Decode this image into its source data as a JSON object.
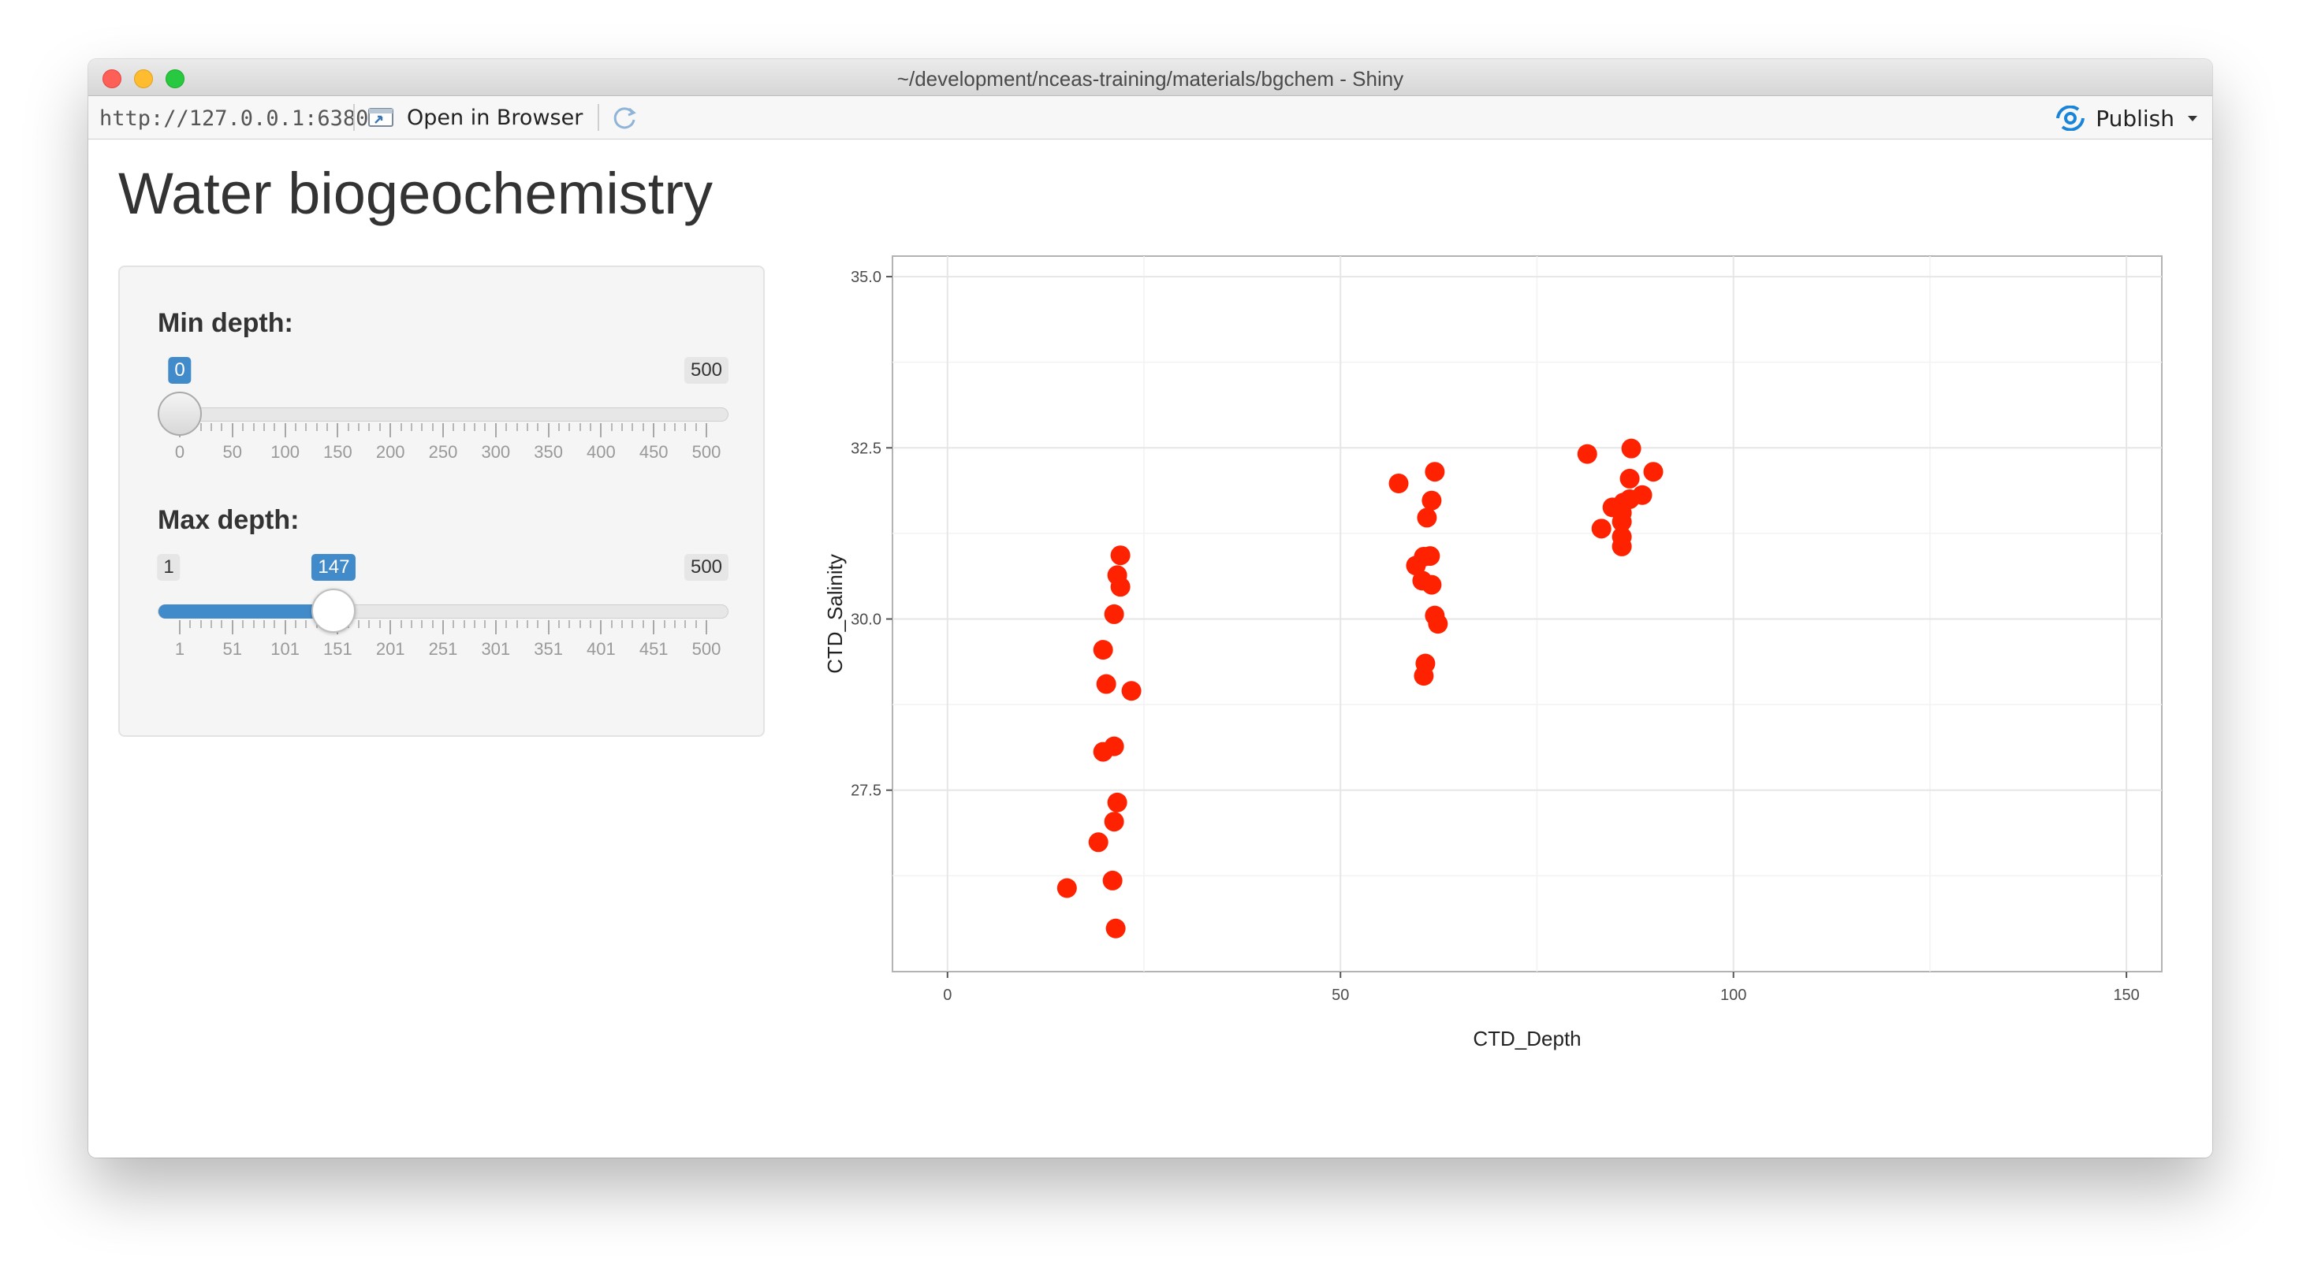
{
  "window": {
    "title": "~/development/nceas-training/materials/bgchem - Shiny"
  },
  "toolbar": {
    "url": "http://127.0.0.1:6380",
    "open_in_browser": "Open in Browser",
    "publish": "Publish"
  },
  "page": {
    "title": "Water biogeochemistry"
  },
  "sliders": {
    "min_depth": {
      "label": "Min depth:",
      "min": 0,
      "max": 500,
      "value": 0,
      "min_label": "0",
      "max_label": "500",
      "value_label": "0",
      "tick_labels": [
        "0",
        "50",
        "100",
        "150",
        "200",
        "250",
        "300",
        "350",
        "400",
        "450",
        "500"
      ]
    },
    "max_depth": {
      "label": "Max depth:",
      "min": 1,
      "max": 500,
      "value": 147,
      "min_label": "1",
      "max_label": "500",
      "value_label": "147",
      "tick_labels": [
        "1",
        "51",
        "101",
        "151",
        "201",
        "251",
        "301",
        "351",
        "401",
        "451",
        "500"
      ]
    }
  },
  "chart_data": {
    "type": "scatter",
    "xlabel": "CTD_Depth",
    "ylabel": "CTD_Salinity",
    "xlim": [
      -7,
      154.5
    ],
    "ylim": [
      24.85,
      35.3
    ],
    "x_ticks": [
      0,
      50,
      100,
      150
    ],
    "x_tick_labels": [
      "0",
      "50",
      "100",
      "150"
    ],
    "y_ticks": [
      27.5,
      30.0,
      32.5,
      35.0
    ],
    "y_tick_labels": [
      "27.5",
      "30.0",
      "32.5",
      "35.0"
    ],
    "grid": true,
    "point_color": "#ff2200",
    "points": [
      {
        "x": 22.0,
        "y": 30.93
      },
      {
        "x": 21.6,
        "y": 30.64
      },
      {
        "x": 22.0,
        "y": 30.47
      },
      {
        "x": 21.2,
        "y": 30.07
      },
      {
        "x": 19.8,
        "y": 29.55
      },
      {
        "x": 20.2,
        "y": 29.05
      },
      {
        "x": 23.4,
        "y": 28.95
      },
      {
        "x": 21.2,
        "y": 28.14
      },
      {
        "x": 19.8,
        "y": 28.06
      },
      {
        "x": 21.6,
        "y": 27.32
      },
      {
        "x": 21.2,
        "y": 27.04
      },
      {
        "x": 19.2,
        "y": 26.74
      },
      {
        "x": 21.0,
        "y": 26.18
      },
      {
        "x": 15.2,
        "y": 26.07
      },
      {
        "x": 21.4,
        "y": 25.48
      },
      {
        "x": 57.4,
        "y": 31.98
      },
      {
        "x": 62.0,
        "y": 32.15
      },
      {
        "x": 61.6,
        "y": 31.73
      },
      {
        "x": 61.0,
        "y": 31.48
      },
      {
        "x": 60.6,
        "y": 30.91
      },
      {
        "x": 61.4,
        "y": 30.92
      },
      {
        "x": 59.6,
        "y": 30.78
      },
      {
        "x": 60.4,
        "y": 30.56
      },
      {
        "x": 61.6,
        "y": 30.5
      },
      {
        "x": 62.0,
        "y": 30.05
      },
      {
        "x": 62.4,
        "y": 29.93
      },
      {
        "x": 60.8,
        "y": 29.35
      },
      {
        "x": 60.6,
        "y": 29.17
      },
      {
        "x": 81.4,
        "y": 32.41
      },
      {
        "x": 87.0,
        "y": 32.49
      },
      {
        "x": 89.8,
        "y": 32.15
      },
      {
        "x": 86.8,
        "y": 32.05
      },
      {
        "x": 88.4,
        "y": 31.81
      },
      {
        "x": 86.8,
        "y": 31.75
      },
      {
        "x": 86.0,
        "y": 31.7
      },
      {
        "x": 84.6,
        "y": 31.63
      },
      {
        "x": 85.8,
        "y": 31.55
      },
      {
        "x": 85.8,
        "y": 31.42
      },
      {
        "x": 83.2,
        "y": 31.32
      },
      {
        "x": 85.8,
        "y": 31.2
      },
      {
        "x": 85.8,
        "y": 31.06
      }
    ]
  }
}
